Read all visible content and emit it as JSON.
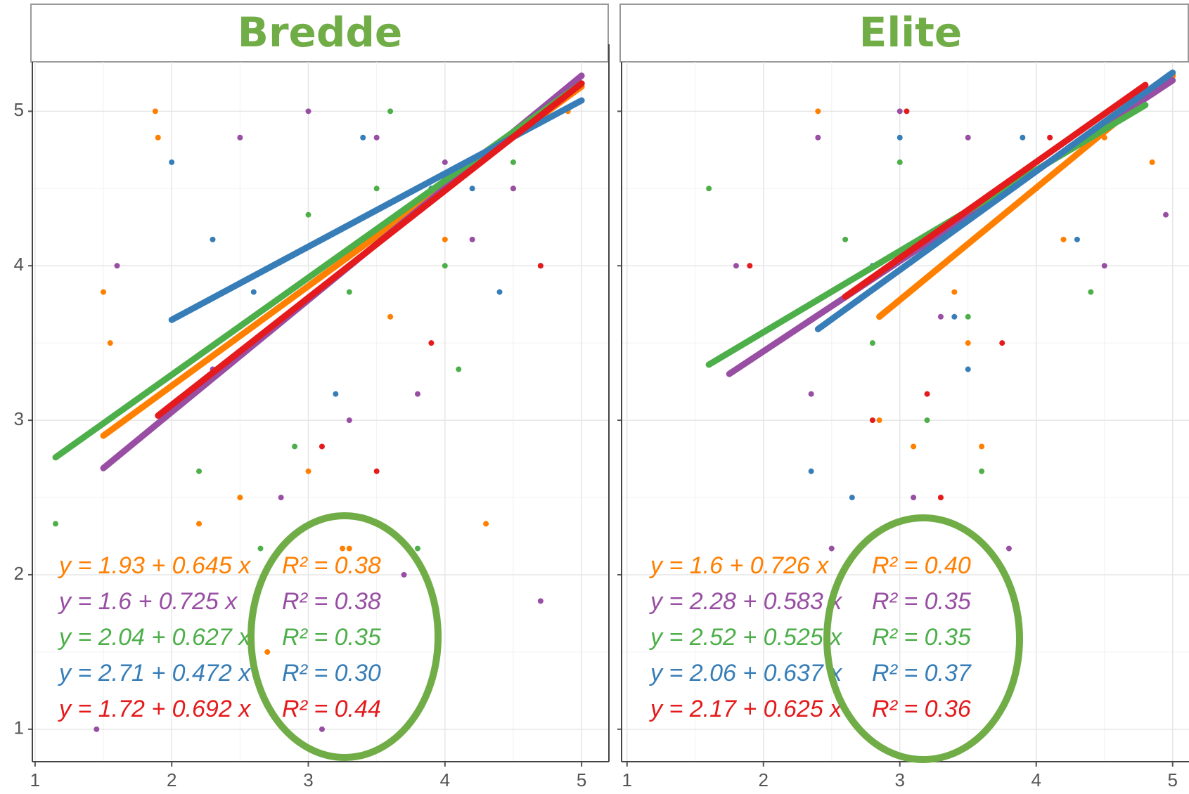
{
  "chart_data": [
    {
      "type": "scatter",
      "title": "Bredde",
      "xlim": [
        0.98,
        5.2
      ],
      "ylim": [
        0.79,
        5.32
      ],
      "xticks": [
        1,
        2,
        3,
        4,
        5
      ],
      "yticks": [
        1,
        2,
        3,
        4,
        5
      ],
      "grid": true,
      "series": [
        {
          "color": "#ff7f00",
          "equation": "y = 1.93 + 0.645 x",
          "r2_label": "R² = 0.38",
          "x": [
            1.5,
            1.55,
            1.88,
            1.9,
            2.2,
            2.5,
            3.0,
            3.3,
            3.6,
            4.0,
            4.3,
            4.5,
            4.9,
            3.25,
            2.7
          ],
          "values": [
            3.83,
            3.5,
            5,
            4.83,
            2.33,
            2.5,
            2.67,
            2.17,
            3.67,
            4.17,
            2.33,
            4.5,
            5,
            2.17,
            1.5
          ],
          "fit_x": [
            1.5,
            5
          ],
          "fit_values": [
            2.9,
            5.16
          ]
        },
        {
          "color": "#984ea3",
          "equation": "y = 1.6 + 0.725 x",
          "r2_label": "R² = 0.38",
          "x": [
            1.45,
            1.6,
            2.5,
            3.0,
            3.5,
            4.0,
            4.5,
            4.7,
            3.3,
            2.8,
            3.1,
            3.8,
            4.2,
            3.7,
            2.3
          ],
          "values": [
            1,
            4,
            4.83,
            5,
            4.83,
            4.67,
            4.5,
            1.83,
            3,
            2.5,
            1,
            3.17,
            4.17,
            2,
            3.33
          ],
          "fit_x": [
            1.5,
            5
          ],
          "fit_values": [
            2.69,
            5.23
          ]
        },
        {
          "color": "#4daf4a",
          "equation": "y = 2.04 + 0.627 x",
          "r2_label": "R² = 0.35",
          "x": [
            1.15,
            2.65,
            2.2,
            3.0,
            3.5,
            4.0,
            4.5,
            3.8,
            2.9,
            3.3,
            4.1,
            3.6
          ],
          "values": [
            2.33,
            2.17,
            2.67,
            4.33,
            4.5,
            4,
            4.67,
            2.17,
            2.83,
            3.83,
            3.33,
            5
          ],
          "fit_x": [
            1.15,
            5
          ],
          "fit_values": [
            2.76,
            5.18
          ]
        },
        {
          "color": "#377eb8",
          "equation": "y = 2.71 + 0.472 x",
          "r2_label": "R² = 0.30",
          "x": [
            2.0,
            2.3,
            2.6,
            3.4,
            3.9,
            4.4,
            4.7,
            3.2,
            4.2
          ],
          "values": [
            4.67,
            4.17,
            3.83,
            4.83,
            4.5,
            3.83,
            4,
            3.17,
            4.5
          ],
          "fit_x": [
            2.0,
            5
          ],
          "fit_values": [
            3.65,
            5.07
          ]
        },
        {
          "color": "#e41a1c",
          "equation": "y = 1.72 + 0.692 x",
          "r2_label": "R² = 0.44",
          "x": [
            3.5,
            4.7,
            3.1,
            3.9
          ],
          "values": [
            2.67,
            4,
            2.83,
            3.5
          ],
          "fit_x": [
            1.9,
            5
          ],
          "fit_values": [
            3.03,
            5.18
          ]
        }
      ]
    },
    {
      "type": "scatter",
      "title": "Elite",
      "xlim": [
        0.96,
        5.12
      ],
      "ylim": [
        0.79,
        5.32
      ],
      "xticks": [
        1,
        2,
        3,
        4,
        5
      ],
      "yticks": [
        1,
        2,
        3,
        4,
        5
      ],
      "grid": true,
      "series": [
        {
          "color": "#ff7f00",
          "equation": "y = 1.6 + 0.726 x",
          "r2_label": "R² = 0.40",
          "x": [
            2.4,
            3.1,
            3.5,
            4.0,
            4.5,
            4.85,
            3.3,
            2.85,
            3.6,
            4.2,
            3.4
          ],
          "values": [
            5,
            2.83,
            3.5,
            4.5,
            4.83,
            4.67,
            2.5,
            3,
            2.83,
            4.17,
            3.83
          ],
          "fit_x": [
            2.85,
            5
          ],
          "fit_values": [
            3.67,
            5.23
          ]
        },
        {
          "color": "#984ea3",
          "equation": "y = 2.28 + 0.583 x",
          "r2_label": "R² = 0.35",
          "x": [
            1.8,
            2.4,
            2.5,
            3.0,
            3.5,
            4.0,
            4.5,
            4.95,
            3.1,
            2.35,
            3.8,
            3.3
          ],
          "values": [
            4,
            4.83,
            2.17,
            5,
            4.83,
            4.5,
            4,
            4.33,
            2.5,
            3.17,
            2.17,
            3.67
          ],
          "fit_x": [
            1.75,
            5
          ],
          "fit_values": [
            3.3,
            5.2
          ]
        },
        {
          "color": "#4daf4a",
          "equation": "y = 2.52 + 0.525 x",
          "r2_label": "R² = 0.35",
          "x": [
            1.6,
            2.6,
            3.0,
            3.5,
            4.0,
            4.4,
            3.6,
            3.2,
            2.8
          ],
          "values": [
            4.5,
            4.17,
            4.67,
            3.67,
            4.5,
            3.83,
            2.67,
            3,
            3.5
          ],
          "fit_x": [
            1.6,
            4.8
          ],
          "fit_values": [
            3.36,
            5.04
          ]
        },
        {
          "color": "#377eb8",
          "equation": "y = 2.06 + 0.637 x",
          "r2_label": "R² = 0.37",
          "x": [
            2.35,
            2.65,
            3.0,
            3.4,
            3.9,
            4.3,
            2.8,
            3.5
          ],
          "values": [
            2.67,
            2.5,
            4.83,
            3.67,
            4.83,
            4.17,
            4,
            3.33
          ],
          "fit_x": [
            2.4,
            5
          ],
          "fit_values": [
            3.59,
            5.25
          ]
        },
        {
          "color": "#e41a1c",
          "equation": "y = 2.17 + 0.625 x",
          "r2_label": "R² = 0.36",
          "x": [
            1.9,
            2.8,
            3.3,
            3.75,
            4.1,
            3.2,
            3.05
          ],
          "values": [
            4,
            3,
            2.5,
            3.5,
            4.83,
            3.17,
            5
          ],
          "fit_x": [
            2.6,
            4.8
          ],
          "fit_values": [
            3.8,
            5.17
          ]
        }
      ]
    }
  ]
}
